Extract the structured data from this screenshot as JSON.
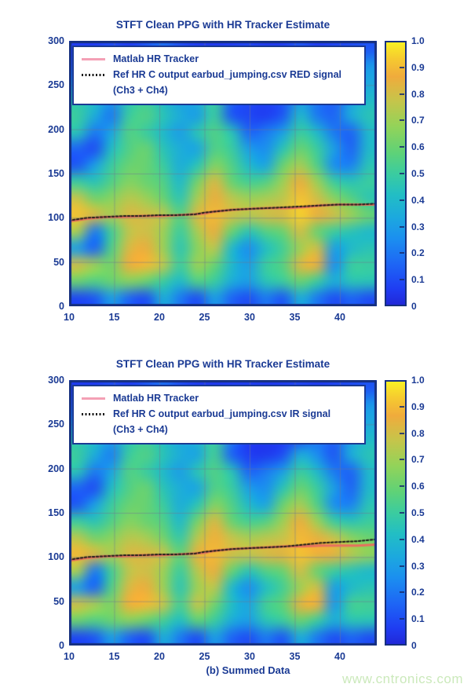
{
  "caption": {
    "text": "(b) Summed Data"
  },
  "watermark": {
    "text": "www.cntronics.com",
    "color": "#cbe9bb"
  },
  "text_color": "#1a3a94",
  "colormap": {
    "stops": [
      {
        "v": 0.0,
        "c": "#2128d8"
      },
      {
        "v": 0.06,
        "c": "#1f3df2"
      },
      {
        "v": 0.15,
        "c": "#1e64f5"
      },
      {
        "v": 0.25,
        "c": "#1b8ef0"
      },
      {
        "v": 0.33,
        "c": "#1ca8df"
      },
      {
        "v": 0.42,
        "c": "#22bec4"
      },
      {
        "v": 0.5,
        "c": "#3bcc9f"
      },
      {
        "v": 0.58,
        "c": "#5fd277"
      },
      {
        "v": 0.68,
        "c": "#93d359"
      },
      {
        "v": 0.78,
        "c": "#c7c44a"
      },
      {
        "v": 0.87,
        "c": "#f0ab3c"
      },
      {
        "v": 0.94,
        "c": "#f6cb2f"
      },
      {
        "v": 1.0,
        "c": "#f9f024"
      }
    ]
  },
  "chart_data": [
    {
      "type": "heatmap",
      "title": "STFT Clean PPG with HR Tracker Estimate",
      "legend": {
        "items": [
          {
            "label": "Matlab HR Tracker",
            "color": "#f4a0b5",
            "style": "solid"
          },
          {
            "label": "Ref HR C output earbud_jumping.csv RED signal",
            "label2": "(Ch3 + Ch4)",
            "color": "#151515",
            "style": "dotted"
          }
        ]
      },
      "x_ticks": [
        10,
        15,
        20,
        25,
        30,
        35,
        40
      ],
      "y_ticks": [
        300,
        250,
        200,
        150,
        100,
        50,
        0
      ],
      "x_range": [
        10,
        44.1
      ],
      "y_range": [
        0,
        300
      ],
      "colorbar_ticks": [
        "1.0",
        "0.9",
        "0.8",
        "0.7",
        "0.6",
        "0.5",
        "0.4",
        "0.3",
        "0.2",
        "0.1",
        "0"
      ],
      "colorbar_range": [
        0,
        1
      ],
      "grid": true,
      "heatmap": {
        "x0": 10,
        "x1": 44,
        "y0": 300,
        "y1": 0,
        "cols": 18,
        "rows": 16,
        "values": [
          [
            0.06,
            0.06,
            0.1,
            0.06,
            0.12,
            0.18,
            0.1,
            0.06,
            0.05,
            0.06,
            0.08,
            0.05,
            0.06,
            0.12,
            0.06,
            0.08,
            0.1,
            0.12
          ],
          [
            0.12,
            0.15,
            0.22,
            0.15,
            0.22,
            0.28,
            0.18,
            0.12,
            0.1,
            0.1,
            0.15,
            0.1,
            0.12,
            0.18,
            0.22,
            0.15,
            0.22,
            0.28
          ],
          [
            0.25,
            0.28,
            0.32,
            0.28,
            0.33,
            0.33,
            0.28,
            0.32,
            0.22,
            0.18,
            0.2,
            0.18,
            0.18,
            0.25,
            0.32,
            0.28,
            0.32,
            0.33
          ],
          [
            0.45,
            0.4,
            0.28,
            0.45,
            0.5,
            0.4,
            0.3,
            0.35,
            0.5,
            0.15,
            0.1,
            0.08,
            0.12,
            0.3,
            0.2,
            0.15,
            0.3,
            0.4
          ],
          [
            0.5,
            0.35,
            0.2,
            0.5,
            0.55,
            0.45,
            0.35,
            0.3,
            0.5,
            0.12,
            0.08,
            0.06,
            0.12,
            0.4,
            0.2,
            0.15,
            0.35,
            0.45
          ],
          [
            0.45,
            0.2,
            0.32,
            0.55,
            0.5,
            0.4,
            0.3,
            0.45,
            0.55,
            0.45,
            0.15,
            0.2,
            0.3,
            0.5,
            0.4,
            0.2,
            0.15,
            0.4
          ],
          [
            0.15,
            0.1,
            0.42,
            0.55,
            0.6,
            0.45,
            0.35,
            0.32,
            0.55,
            0.5,
            0.3,
            0.25,
            0.45,
            0.6,
            0.5,
            0.3,
            0.15,
            0.4
          ],
          [
            0.12,
            0.3,
            0.5,
            0.6,
            0.6,
            0.5,
            0.35,
            0.45,
            0.65,
            0.55,
            0.4,
            0.32,
            0.6,
            0.72,
            0.55,
            0.25,
            0.22,
            0.45
          ],
          [
            0.5,
            0.45,
            0.55,
            0.65,
            0.6,
            0.55,
            0.4,
            0.62,
            0.82,
            0.6,
            0.52,
            0.55,
            0.7,
            0.86,
            0.7,
            0.5,
            0.45,
            0.5
          ],
          [
            0.78,
            0.62,
            0.66,
            0.75,
            0.7,
            0.6,
            0.46,
            0.72,
            0.86,
            0.76,
            0.7,
            0.72,
            0.76,
            0.92,
            0.8,
            0.66,
            0.56,
            0.46
          ],
          [
            0.92,
            0.82,
            0.72,
            0.82,
            0.8,
            0.76,
            0.56,
            0.82,
            0.9,
            0.8,
            0.76,
            0.8,
            0.82,
            0.95,
            0.86,
            0.8,
            0.7,
            0.6
          ],
          [
            0.72,
            0.2,
            0.52,
            0.76,
            0.8,
            0.7,
            0.5,
            0.72,
            0.86,
            0.6,
            0.45,
            0.55,
            0.6,
            0.8,
            0.6,
            0.5,
            0.45,
            0.4
          ],
          [
            0.3,
            0.15,
            0.55,
            0.82,
            0.86,
            0.7,
            0.46,
            0.66,
            0.76,
            0.4,
            0.25,
            0.42,
            0.52,
            0.7,
            0.8,
            0.3,
            0.4,
            0.45
          ],
          [
            0.8,
            0.7,
            0.62,
            0.86,
            0.9,
            0.76,
            0.5,
            0.7,
            0.6,
            0.4,
            0.3,
            0.5,
            0.56,
            0.82,
            0.86,
            0.25,
            0.5,
            0.5
          ],
          [
            0.6,
            0.55,
            0.6,
            0.65,
            0.6,
            0.5,
            0.4,
            0.55,
            0.5,
            0.35,
            0.3,
            0.45,
            0.5,
            0.6,
            0.5,
            0.35,
            0.45,
            0.45
          ],
          [
            0.08,
            0.12,
            0.3,
            0.15,
            0.1,
            0.35,
            0.2,
            0.1,
            0.3,
            0.15,
            0.1,
            0.2,
            0.12,
            0.35,
            0.2,
            0.1,
            0.15,
            0.1
          ]
        ]
      },
      "tracker": {
        "matlab_color": "#e8705e",
        "ref_color": "#1a1a1a",
        "matlab": [
          [
            10,
            96
          ],
          [
            12,
            99
          ],
          [
            14,
            101
          ],
          [
            16,
            101
          ],
          [
            18,
            102
          ],
          [
            20,
            102
          ],
          [
            22,
            103
          ],
          [
            24,
            104
          ],
          [
            25,
            105
          ],
          [
            26,
            107
          ],
          [
            28,
            109
          ],
          [
            30,
            110
          ],
          [
            32,
            111
          ],
          [
            34,
            111
          ],
          [
            36,
            112
          ],
          [
            38,
            114
          ],
          [
            40,
            115
          ],
          [
            42,
            115
          ],
          [
            44,
            115
          ]
        ],
        "ref": [
          [
            10,
            97
          ],
          [
            12,
            100
          ],
          [
            14,
            101
          ],
          [
            16,
            102
          ],
          [
            18,
            102
          ],
          [
            20,
            103
          ],
          [
            22,
            103
          ],
          [
            24,
            104
          ],
          [
            25,
            106
          ],
          [
            26,
            107
          ],
          [
            28,
            109
          ],
          [
            30,
            110
          ],
          [
            32,
            111
          ],
          [
            34,
            112
          ],
          [
            36,
            113
          ],
          [
            38,
            114
          ],
          [
            40,
            115
          ],
          [
            42,
            115
          ],
          [
            44,
            116
          ]
        ]
      }
    },
    {
      "type": "heatmap",
      "title": "STFT Clean PPG with HR Tracker Estimate",
      "legend": {
        "items": [
          {
            "label": "Matlab HR Tracker",
            "color": "#f4a0b5",
            "style": "solid"
          },
          {
            "label": "Ref HR C output earbud_jumping.csv IR signal",
            "label2": "(Ch3 + Ch4)",
            "color": "#151515",
            "style": "dotted"
          }
        ]
      },
      "x_ticks": [
        10,
        15,
        20,
        25,
        30,
        35,
        40
      ],
      "y_ticks": [
        300,
        250,
        200,
        150,
        100,
        50,
        0
      ],
      "x_range": [
        10,
        44.1
      ],
      "y_range": [
        0,
        300
      ],
      "colorbar_ticks": [
        "1.0",
        "0.9",
        "0.8",
        "0.7",
        "0.6",
        "0.5",
        "0.4",
        "0.3",
        "0.2",
        "0.1",
        "0"
      ],
      "colorbar_range": [
        0,
        1
      ],
      "grid": true,
      "heatmap": {
        "x0": 10,
        "x1": 44,
        "y0": 300,
        "y1": 0,
        "cols": 18,
        "rows": 16,
        "values": [
          [
            0.06,
            0.06,
            0.1,
            0.06,
            0.12,
            0.18,
            0.1,
            0.06,
            0.05,
            0.06,
            0.06,
            0.05,
            0.06,
            0.08,
            0.06,
            0.08,
            0.1,
            0.12
          ],
          [
            0.12,
            0.15,
            0.22,
            0.15,
            0.22,
            0.28,
            0.18,
            0.12,
            0.1,
            0.08,
            0.08,
            0.06,
            0.08,
            0.12,
            0.15,
            0.15,
            0.22,
            0.28
          ],
          [
            0.25,
            0.28,
            0.32,
            0.28,
            0.33,
            0.33,
            0.28,
            0.32,
            0.22,
            0.15,
            0.1,
            0.08,
            0.1,
            0.18,
            0.28,
            0.28,
            0.32,
            0.33
          ],
          [
            0.45,
            0.4,
            0.3,
            0.45,
            0.5,
            0.42,
            0.32,
            0.38,
            0.5,
            0.2,
            0.06,
            0.05,
            0.06,
            0.1,
            0.2,
            0.15,
            0.3,
            0.4
          ],
          [
            0.5,
            0.35,
            0.22,
            0.5,
            0.55,
            0.45,
            0.35,
            0.32,
            0.52,
            0.15,
            0.06,
            0.05,
            0.1,
            0.35,
            0.25,
            0.12,
            0.35,
            0.45
          ],
          [
            0.45,
            0.2,
            0.32,
            0.55,
            0.5,
            0.4,
            0.3,
            0.45,
            0.55,
            0.45,
            0.15,
            0.2,
            0.3,
            0.5,
            0.4,
            0.2,
            0.15,
            0.4
          ],
          [
            0.15,
            0.1,
            0.42,
            0.55,
            0.6,
            0.45,
            0.35,
            0.32,
            0.55,
            0.5,
            0.3,
            0.25,
            0.45,
            0.6,
            0.5,
            0.3,
            0.15,
            0.4
          ],
          [
            0.12,
            0.3,
            0.5,
            0.6,
            0.6,
            0.5,
            0.35,
            0.45,
            0.65,
            0.55,
            0.4,
            0.32,
            0.6,
            0.72,
            0.55,
            0.25,
            0.22,
            0.45
          ],
          [
            0.5,
            0.45,
            0.55,
            0.65,
            0.6,
            0.55,
            0.4,
            0.62,
            0.82,
            0.6,
            0.52,
            0.55,
            0.7,
            0.86,
            0.7,
            0.5,
            0.45,
            0.5
          ],
          [
            0.75,
            0.62,
            0.66,
            0.75,
            0.72,
            0.62,
            0.48,
            0.75,
            0.88,
            0.78,
            0.72,
            0.75,
            0.78,
            0.9,
            0.85,
            0.78,
            0.66,
            0.6
          ],
          [
            0.9,
            0.82,
            0.72,
            0.82,
            0.82,
            0.78,
            0.58,
            0.85,
            0.9,
            0.8,
            0.78,
            0.82,
            0.84,
            0.92,
            0.88,
            0.85,
            0.75,
            0.68
          ],
          [
            0.72,
            0.2,
            0.52,
            0.76,
            0.8,
            0.7,
            0.5,
            0.75,
            0.86,
            0.6,
            0.45,
            0.55,
            0.6,
            0.8,
            0.6,
            0.5,
            0.45,
            0.4
          ],
          [
            0.3,
            0.15,
            0.55,
            0.82,
            0.86,
            0.7,
            0.46,
            0.7,
            0.76,
            0.4,
            0.25,
            0.42,
            0.52,
            0.7,
            0.8,
            0.3,
            0.4,
            0.45
          ],
          [
            0.8,
            0.72,
            0.64,
            0.88,
            0.9,
            0.78,
            0.52,
            0.78,
            0.62,
            0.42,
            0.32,
            0.52,
            0.58,
            0.84,
            0.88,
            0.28,
            0.52,
            0.52
          ],
          [
            0.6,
            0.55,
            0.6,
            0.65,
            0.6,
            0.52,
            0.42,
            0.58,
            0.5,
            0.35,
            0.3,
            0.45,
            0.5,
            0.6,
            0.5,
            0.35,
            0.45,
            0.45
          ],
          [
            0.08,
            0.12,
            0.3,
            0.15,
            0.1,
            0.35,
            0.2,
            0.1,
            0.3,
            0.15,
            0.1,
            0.2,
            0.12,
            0.35,
            0.2,
            0.1,
            0.15,
            0.1
          ]
        ]
      },
      "tracker": {
        "matlab_color": "#e8705e",
        "ref_color": "#1a1a1a",
        "matlab": [
          [
            10,
            96
          ],
          [
            12,
            99
          ],
          [
            14,
            101
          ],
          [
            16,
            101
          ],
          [
            18,
            102
          ],
          [
            20,
            102
          ],
          [
            22,
            103
          ],
          [
            24,
            104
          ],
          [
            25,
            105
          ],
          [
            26,
            107
          ],
          [
            28,
            109
          ],
          [
            30,
            110
          ],
          [
            32,
            111
          ],
          [
            34,
            112
          ],
          [
            36,
            112
          ],
          [
            38,
            113
          ],
          [
            40,
            113
          ],
          [
            42,
            113
          ],
          [
            44,
            114
          ]
        ],
        "ref": [
          [
            10,
            97
          ],
          [
            12,
            100
          ],
          [
            14,
            101
          ],
          [
            16,
            102
          ],
          [
            18,
            102
          ],
          [
            20,
            103
          ],
          [
            22,
            103
          ],
          [
            24,
            104
          ],
          [
            25,
            106
          ],
          [
            26,
            107
          ],
          [
            28,
            109
          ],
          [
            30,
            110
          ],
          [
            32,
            111
          ],
          [
            34,
            112
          ],
          [
            36,
            114
          ],
          [
            38,
            116
          ],
          [
            40,
            117
          ],
          [
            42,
            118
          ],
          [
            44,
            120
          ]
        ]
      }
    }
  ]
}
